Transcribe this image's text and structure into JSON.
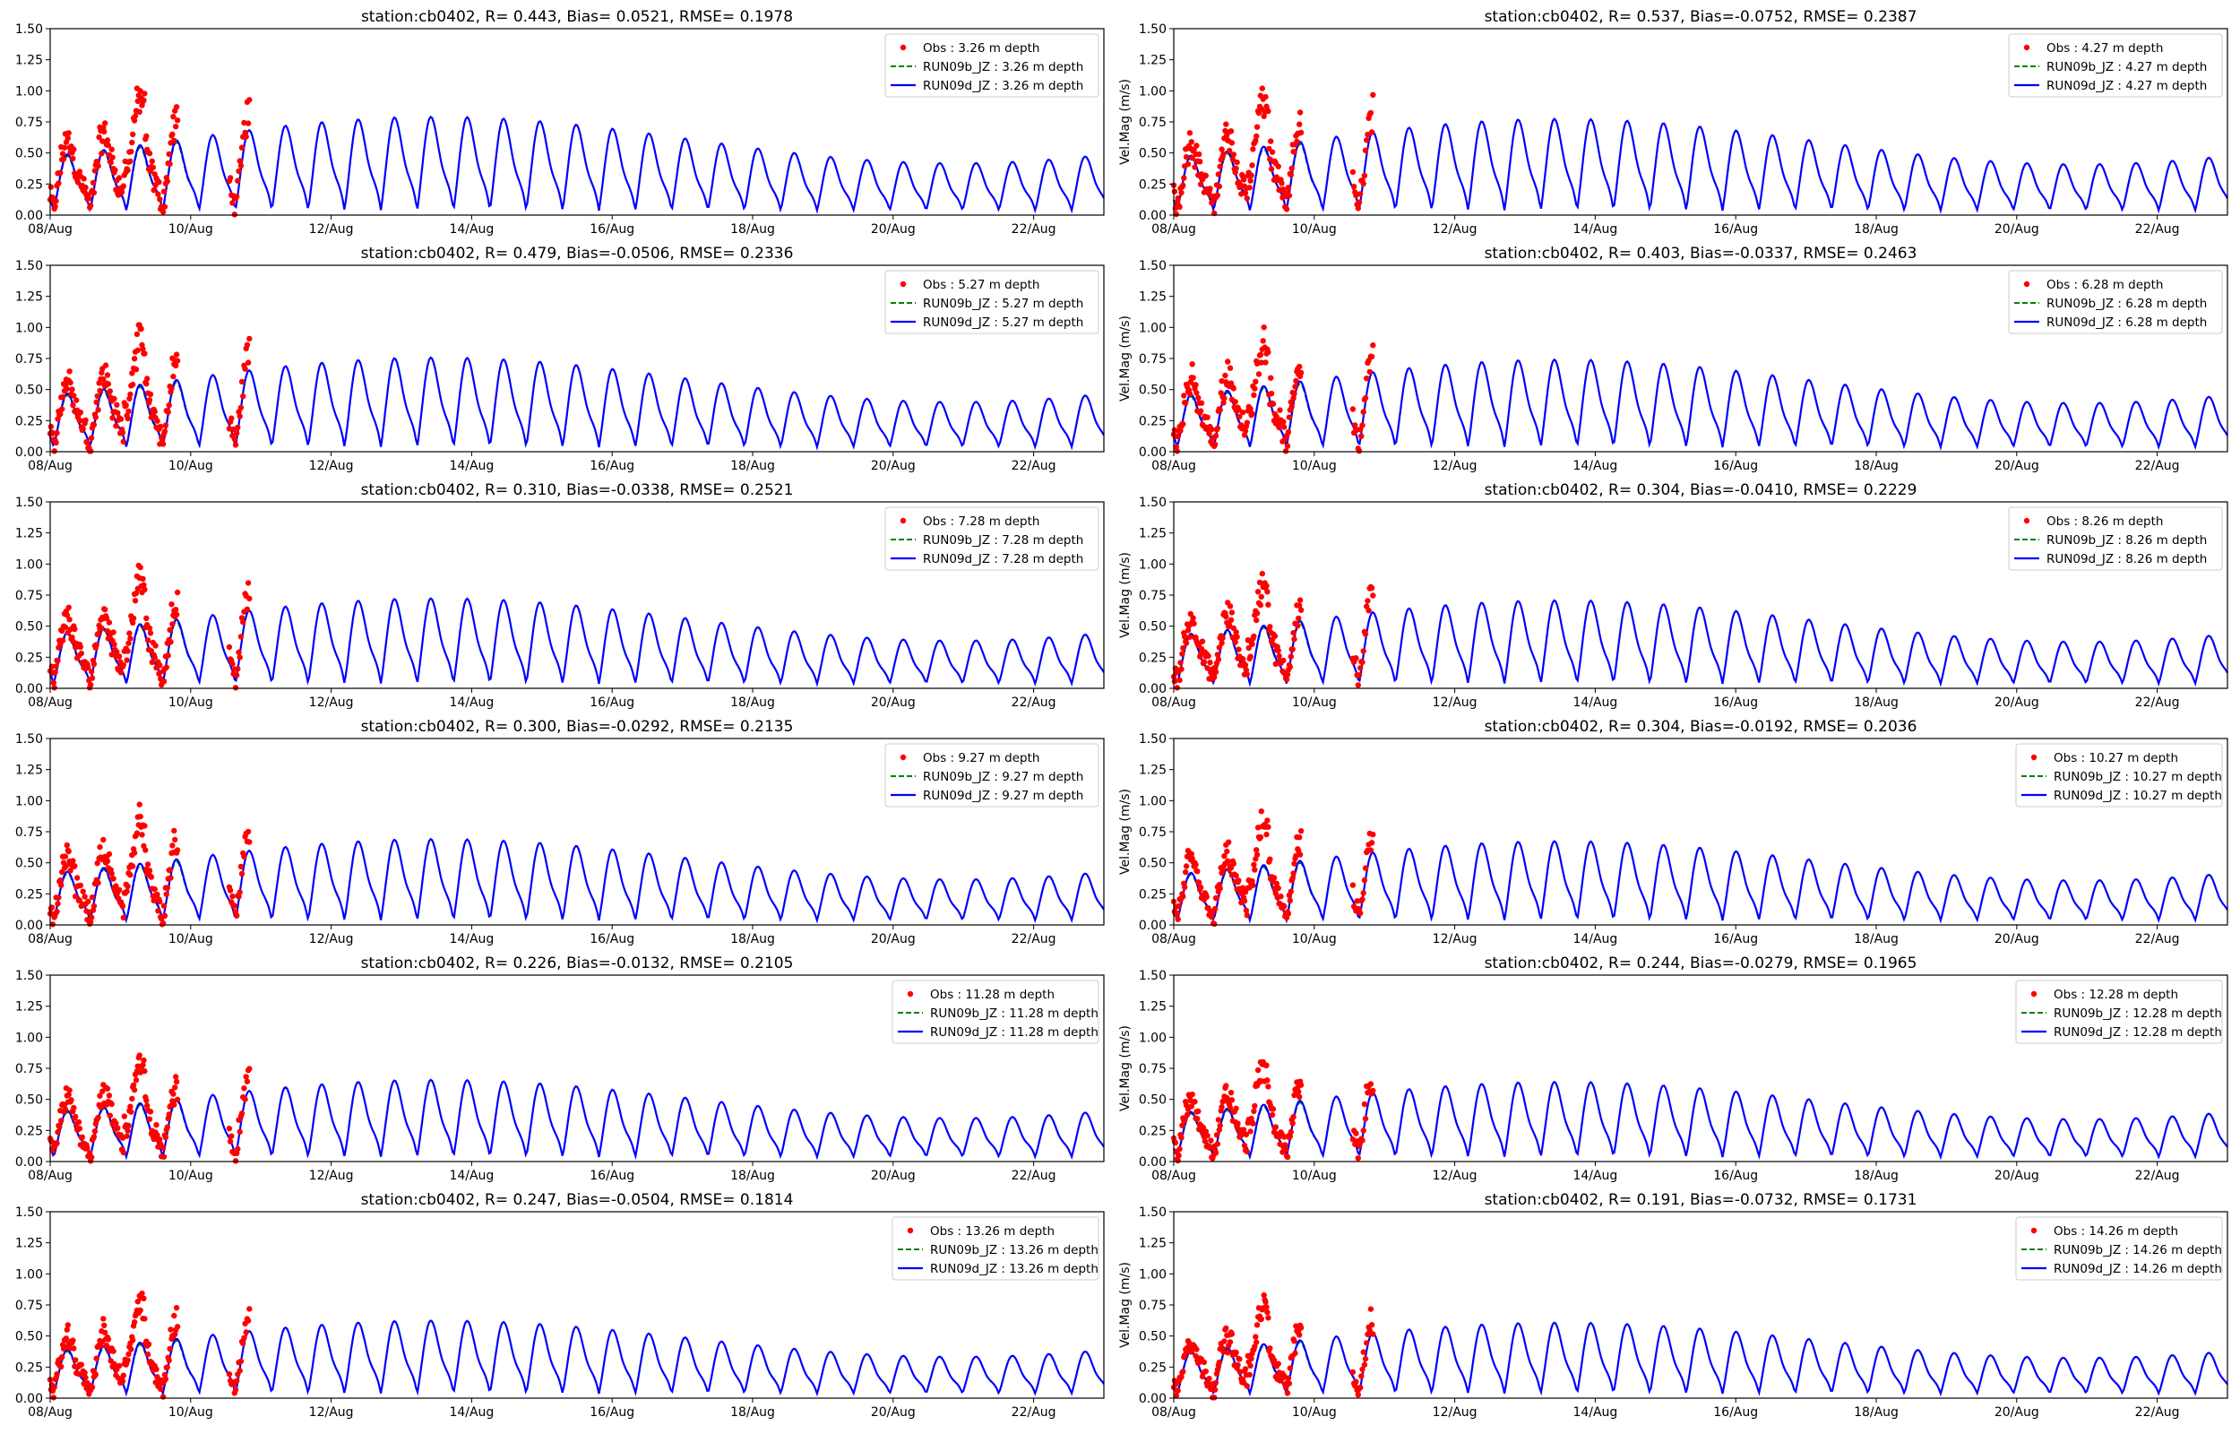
{
  "colors": {
    "obs": "#ff0000",
    "run09b": "#008000",
    "run09d": "#0000ff",
    "axes": "#000000"
  },
  "chart_data": [
    {
      "type": "line",
      "title": "station:cb0402, R= 0.443, Bias= 0.0521, RMSE= 0.1978",
      "ylabel": "",
      "depth": 3.26,
      "legend": [
        "Obs : 3.26 m depth",
        "RUN09b_JZ : 3.26 m depth",
        "RUN09d_JZ : 3.26 m depth"
      ]
    },
    {
      "type": "line",
      "title": "station:cb0402, R= 0.537, Bias=-0.0752, RMSE= 0.2387",
      "ylabel": "Vel.Mag (m/s)",
      "depth": 4.27,
      "legend": [
        "Obs : 4.27 m depth",
        "RUN09b_JZ : 4.27 m depth",
        "RUN09d_JZ : 4.27 m depth"
      ]
    },
    {
      "type": "line",
      "title": "station:cb0402, R= 0.479, Bias=-0.0506, RMSE= 0.2336",
      "ylabel": "",
      "depth": 5.27,
      "legend": [
        "Obs : 5.27 m depth",
        "RUN09b_JZ : 5.27 m depth",
        "RUN09d_JZ : 5.27 m depth"
      ]
    },
    {
      "type": "line",
      "title": "station:cb0402, R= 0.403, Bias=-0.0337, RMSE= 0.2463",
      "ylabel": "Vel.Mag (m/s)",
      "depth": 6.28,
      "legend": [
        "Obs : 6.28 m depth",
        "RUN09b_JZ : 6.28 m depth",
        "RUN09d_JZ : 6.28 m depth"
      ]
    },
    {
      "type": "line",
      "title": "station:cb0402, R= 0.310, Bias=-0.0338, RMSE= 0.2521",
      "ylabel": "",
      "depth": 7.28,
      "legend": [
        "Obs : 7.28 m depth",
        "RUN09b_JZ : 7.28 m depth",
        "RUN09d_JZ : 7.28 m depth"
      ]
    },
    {
      "type": "line",
      "title": "station:cb0402, R= 0.304, Bias=-0.0410, RMSE= 0.2229",
      "ylabel": "Vel.Mag (m/s)",
      "depth": 8.26,
      "legend": [
        "Obs : 8.26 m depth",
        "RUN09b_JZ : 8.26 m depth",
        "RUN09d_JZ : 8.26 m depth"
      ]
    },
    {
      "type": "line",
      "title": "station:cb0402, R= 0.300, Bias=-0.0292, RMSE= 0.2135",
      "ylabel": "",
      "depth": 9.27,
      "legend": [
        "Obs : 9.27 m depth",
        "RUN09b_JZ : 9.27 m depth",
        "RUN09d_JZ : 9.27 m depth"
      ]
    },
    {
      "type": "line",
      "title": "station:cb0402, R= 0.304, Bias=-0.0192, RMSE= 0.2036",
      "ylabel": "Vel.Mag (m/s)",
      "depth": 10.27,
      "legend": [
        "Obs : 10.27 m depth",
        "RUN09b_JZ : 10.27 m depth",
        "RUN09d_JZ : 10.27 m depth"
      ]
    },
    {
      "type": "line",
      "title": "station:cb0402, R= 0.226, Bias=-0.0132, RMSE= 0.2105",
      "ylabel": "",
      "depth": 11.28,
      "legend": [
        "Obs : 11.28 m depth",
        "RUN09b_JZ : 11.28 m depth",
        "RUN09d_JZ : 11.28 m depth"
      ]
    },
    {
      "type": "line",
      "title": "station:cb0402, R= 0.244, Bias=-0.0279, RMSE= 0.1965",
      "ylabel": "Vel.Mag (m/s)",
      "depth": 12.28,
      "legend": [
        "Obs : 12.28 m depth",
        "RUN09b_JZ : 12.28 m depth",
        "RUN09d_JZ : 12.28 m depth"
      ]
    },
    {
      "type": "line",
      "title": "station:cb0402, R= 0.247, Bias=-0.0504, RMSE= 0.1814",
      "ylabel": "",
      "depth": 13.26,
      "legend": [
        "Obs : 13.26 m depth",
        "RUN09b_JZ : 13.26 m depth",
        "RUN09d_JZ : 13.26 m depth"
      ]
    },
    {
      "type": "line",
      "title": "station:cb0402, R= 0.191, Bias=-0.0732, RMSE= 0.1731",
      "ylabel": "Vel.Mag (m/s)",
      "depth": 14.26,
      "legend": [
        "Obs : 14.26 m depth",
        "RUN09b_JZ : 14.26 m depth",
        "RUN09d_JZ : 14.26 m depth"
      ]
    }
  ],
  "shared_axes": {
    "xticks": [
      "08/Aug",
      "10/Aug",
      "12/Aug",
      "14/Aug",
      "16/Aug",
      "18/Aug",
      "20/Aug",
      "22/Aug"
    ],
    "xlim_days": [
      8,
      23
    ],
    "ylim": [
      0,
      1.5
    ],
    "yticks": [
      "0.00",
      "0.25",
      "0.50",
      "0.75",
      "1.00",
      "1.25",
      "1.50"
    ],
    "grid": false,
    "legend_placement": "top-right"
  }
}
